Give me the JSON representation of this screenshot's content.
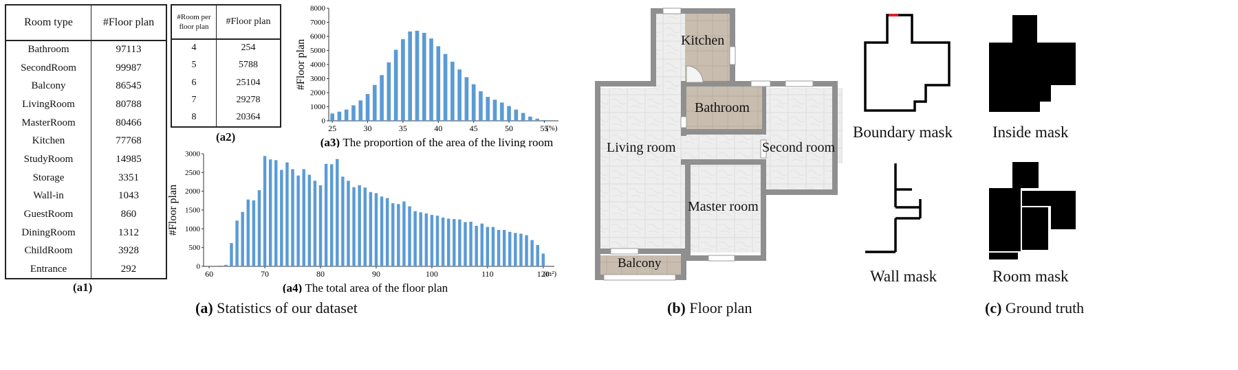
{
  "table_a1": {
    "headers": [
      "Room type",
      "#Floor plan"
    ],
    "rows": [
      [
        "Bathroom",
        "97113"
      ],
      [
        "SecondRoom",
        "99987"
      ],
      [
        "Balcony",
        "86545"
      ],
      [
        "LivingRoom",
        "80788"
      ],
      [
        "MasterRoom",
        "80466"
      ],
      [
        "Kitchen",
        "77768"
      ],
      [
        "StudyRoom",
        "14985"
      ],
      [
        "Storage",
        "3351"
      ],
      [
        "Wall-in",
        "1043"
      ],
      [
        "GuestRoom",
        "860"
      ],
      [
        "DiningRoom",
        "1312"
      ],
      [
        "ChildRoom",
        "3928"
      ],
      [
        "Entrance",
        "292"
      ]
    ],
    "label": "(a1)"
  },
  "table_a2": {
    "headers": [
      "#Room per floor plan",
      "#Floor plan"
    ],
    "rows": [
      [
        "4",
        "254"
      ],
      [
        "5",
        "5788"
      ],
      [
        "6",
        "25104"
      ],
      [
        "7",
        "29278"
      ],
      [
        "8",
        "20364"
      ]
    ],
    "label": "(a2)"
  },
  "chart_data": [
    {
      "type": "bar",
      "id": "a3",
      "title_prefix": "(a3)",
      "title": "The proportion of the area of the living room",
      "ylabel": "#Floor plan",
      "x_unit": "(%)",
      "xlim": [
        24.5,
        57
      ],
      "ylim": [
        0,
        8000
      ],
      "yticks": [
        0,
        1000,
        2000,
        3000,
        4000,
        5000,
        6000,
        7000,
        8000
      ],
      "xticks": [
        25,
        30,
        35,
        40,
        45,
        50,
        55
      ],
      "bar_color": "#5B9BD5",
      "x": [
        25,
        26,
        27,
        28,
        29,
        30,
        31,
        32,
        33,
        34,
        35,
        36,
        37,
        38,
        39,
        40,
        41,
        42,
        43,
        44,
        45,
        46,
        47,
        48,
        49,
        50,
        51,
        52,
        53,
        54,
        55
      ],
      "values": [
        520,
        650,
        800,
        1100,
        1450,
        1900,
        2550,
        3250,
        4150,
        5050,
        5800,
        6350,
        6400,
        6250,
        5850,
        5300,
        4750,
        4200,
        3650,
        3100,
        2600,
        2100,
        1700,
        1500,
        1300,
        1050,
        800,
        560,
        300,
        150,
        50
      ]
    },
    {
      "type": "bar",
      "id": "a4",
      "title_prefix": "(a4)",
      "title": "The total area of the floor plan",
      "ylabel": "#Floor plan",
      "x_unit": "(m²)",
      "xlim": [
        59,
        122
      ],
      "ylim": [
        0,
        3000
      ],
      "yticks": [
        0,
        500,
        1000,
        1500,
        2000,
        2500,
        3000
      ],
      "xticks": [
        60,
        70,
        80,
        90,
        100,
        110,
        120
      ],
      "bar_color": "#5B9BD5",
      "x": [
        62,
        63,
        64,
        65,
        66,
        67,
        68,
        69,
        70,
        71,
        72,
        73,
        74,
        75,
        76,
        77,
        78,
        79,
        80,
        81,
        82,
        83,
        84,
        85,
        86,
        87,
        88,
        89,
        90,
        91,
        92,
        93,
        94,
        95,
        96,
        97,
        98,
        99,
        100,
        101,
        102,
        103,
        104,
        105,
        106,
        107,
        108,
        109,
        110,
        111,
        112,
        113,
        114,
        115,
        116,
        117,
        118,
        119,
        120
      ],
      "values": [
        20,
        40,
        620,
        1220,
        1450,
        1780,
        1760,
        2030,
        2940,
        2850,
        2830,
        2570,
        2770,
        2590,
        2420,
        2590,
        2440,
        2280,
        2160,
        2730,
        2720,
        2860,
        2390,
        2280,
        2110,
        2160,
        2100,
        1980,
        1950,
        1860,
        1820,
        1680,
        1660,
        1730,
        1600,
        1470,
        1440,
        1410,
        1370,
        1350,
        1300,
        1270,
        1260,
        1250,
        1180,
        1190,
        1080,
        1140,
        1050,
        1050,
        970,
        970,
        920,
        890,
        870,
        830,
        700,
        570,
        340
      ]
    }
  ],
  "caption_a": {
    "bold": "(a)",
    "text": "Statistics of our dataset"
  },
  "floorplan": {
    "rooms": [
      "Kitchen",
      "Bathroom",
      "Living room",
      "Second room",
      "Master room",
      "Balcony"
    ],
    "caption": {
      "bold": "(b)",
      "text": "Floor plan"
    }
  },
  "ground_truth": {
    "labels": [
      "Boundary mask",
      "Inside mask",
      "Wall mask",
      "Room mask"
    ],
    "caption": {
      "bold": "(c)",
      "text": "Ground truth"
    }
  }
}
